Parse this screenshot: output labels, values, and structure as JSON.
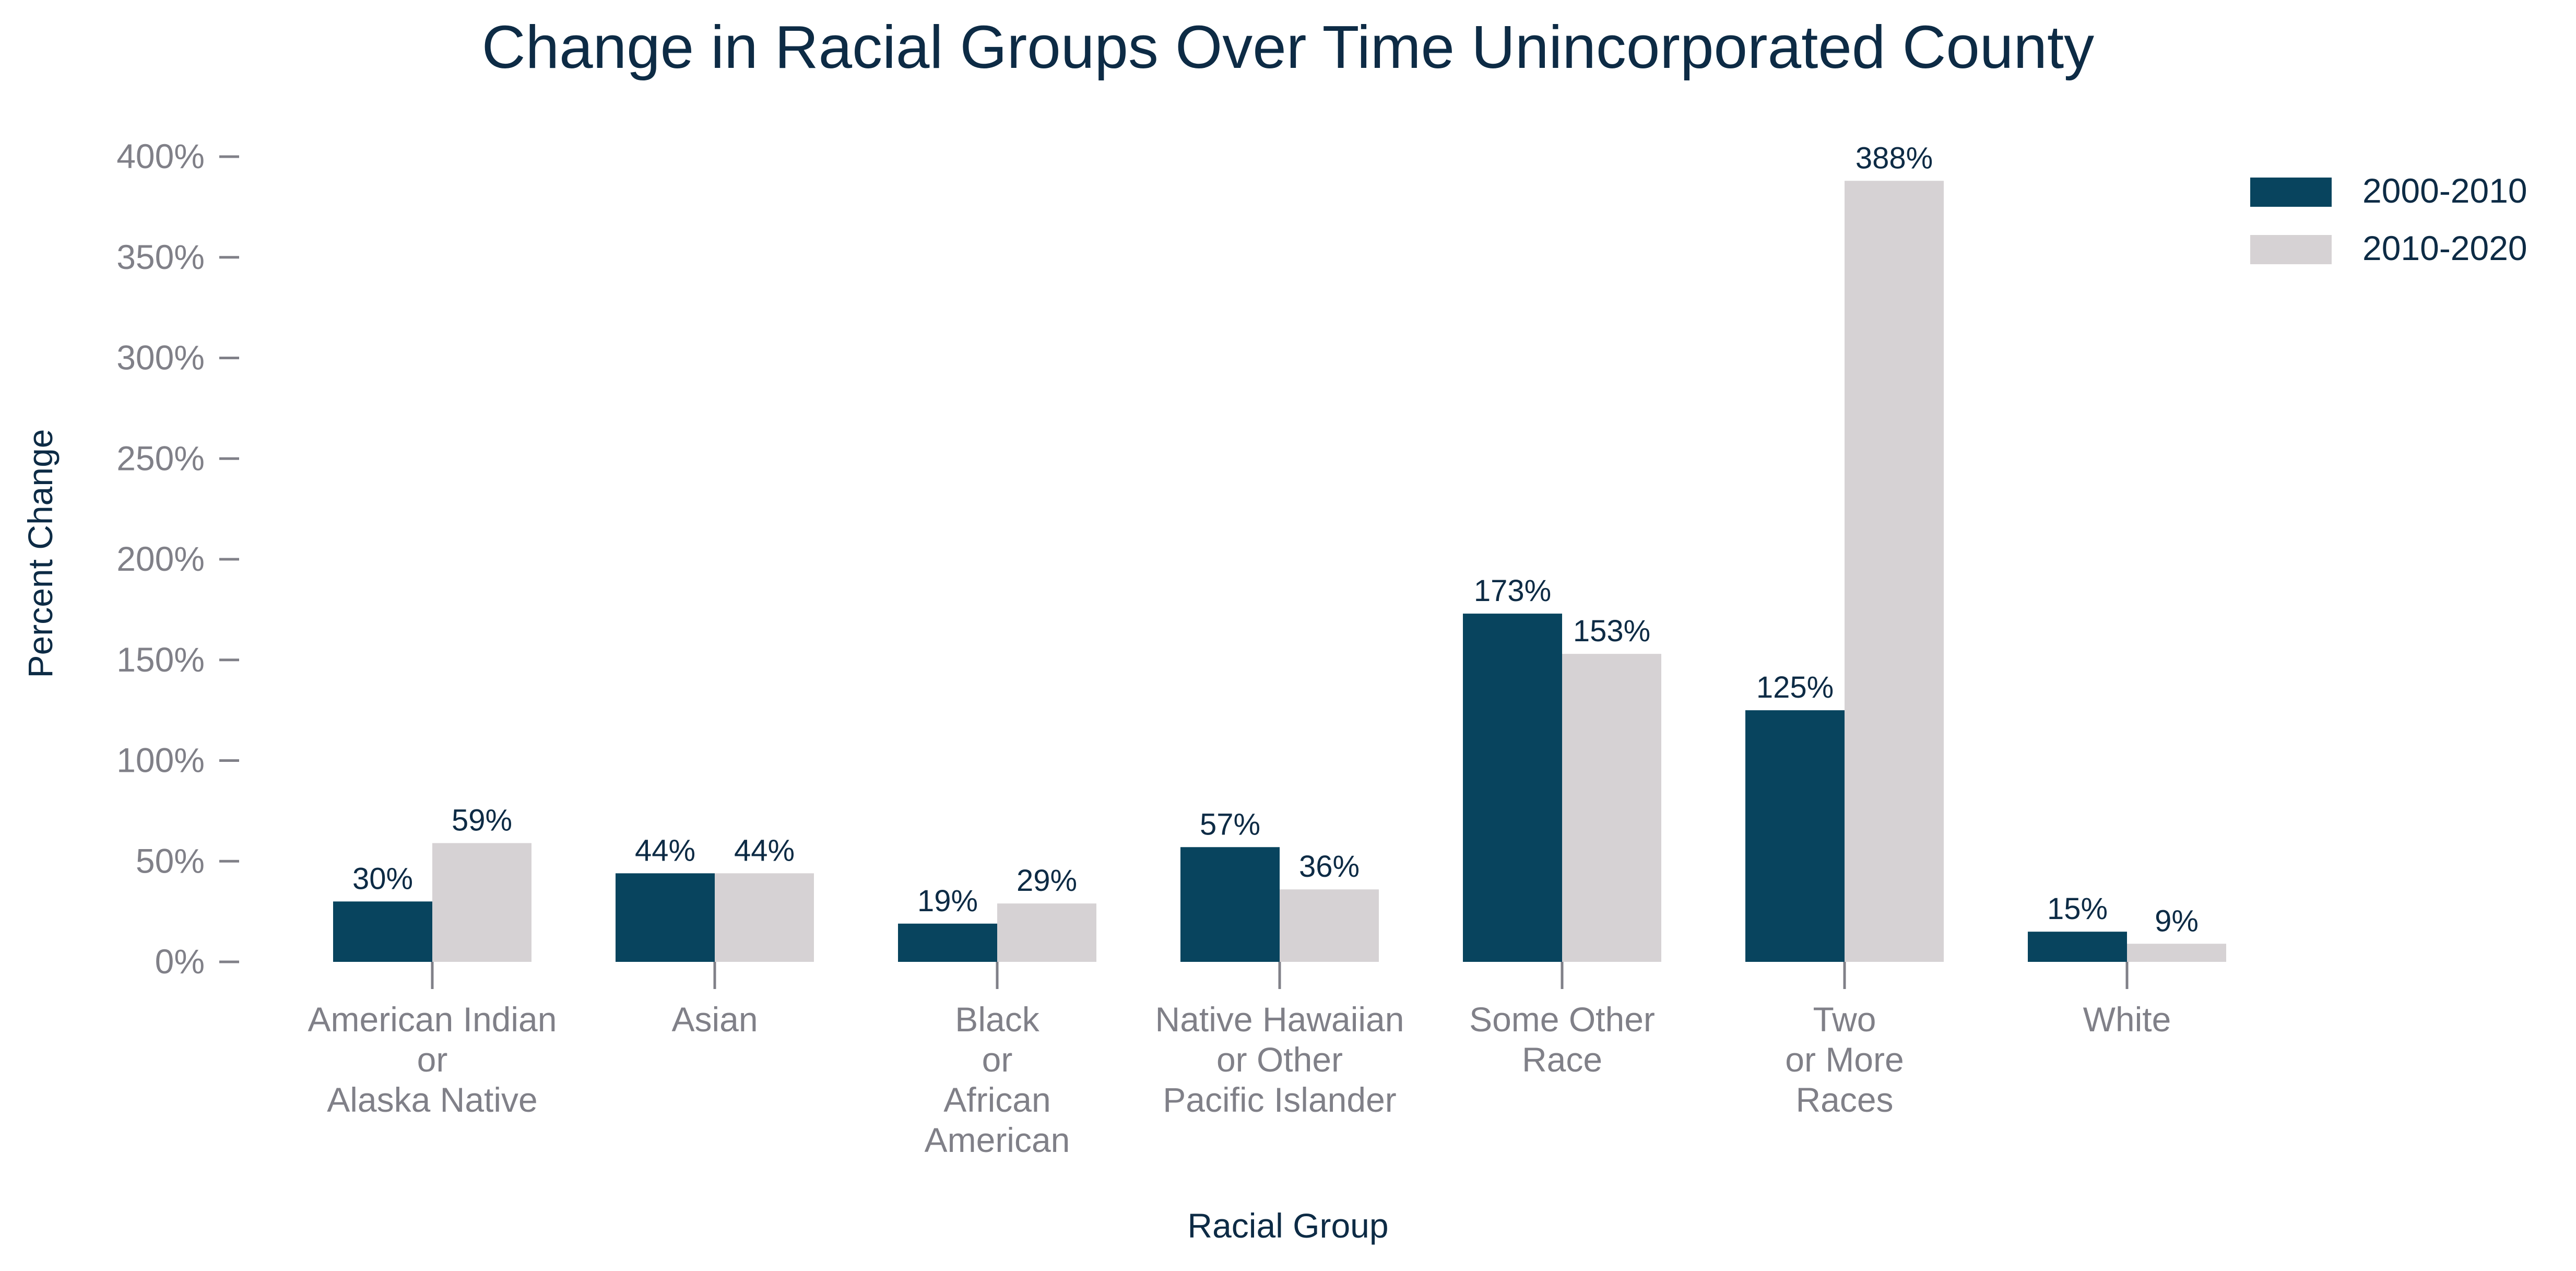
{
  "chart_data": {
    "type": "bar",
    "title": "Change in Racial Groups Over Time Unincorporated County",
    "xlabel": "Racial Group",
    "ylabel": "Percent Change",
    "ylim": [
      0,
      400
    ],
    "yticks": [
      "0%",
      "50%",
      "100%",
      "150%",
      "200%",
      "250%",
      "300%",
      "350%",
      "400%"
    ],
    "ytick_values": [
      0,
      50,
      100,
      150,
      200,
      250,
      300,
      350,
      400
    ],
    "categories": [
      [
        "American Indian",
        "or",
        "Alaska Native"
      ],
      [
        "Asian"
      ],
      [
        "Black",
        "or",
        "African",
        "American"
      ],
      [
        "Native Hawaiian",
        "or Other",
        "Pacific Islander"
      ],
      [
        "Some Other",
        "Race"
      ],
      [
        "Two",
        "or More",
        "Races"
      ],
      [
        "White"
      ]
    ],
    "series": [
      {
        "name": "2000-2010",
        "color": "#08445e",
        "values": [
          30,
          44,
          19,
          57,
          173,
          125,
          15
        ],
        "labels": [
          "30%",
          "44%",
          "19%",
          "57%",
          "173%",
          "125%",
          "15%"
        ]
      },
      {
        "name": "2010-2020",
        "color": "#d6d2d4",
        "values": [
          59,
          44,
          29,
          36,
          153,
          388,
          9
        ],
        "labels": [
          "59%",
          "44%",
          "29%",
          "36%",
          "153%",
          "388%",
          "9%"
        ]
      }
    ],
    "grid": false,
    "legend": "top-right"
  }
}
